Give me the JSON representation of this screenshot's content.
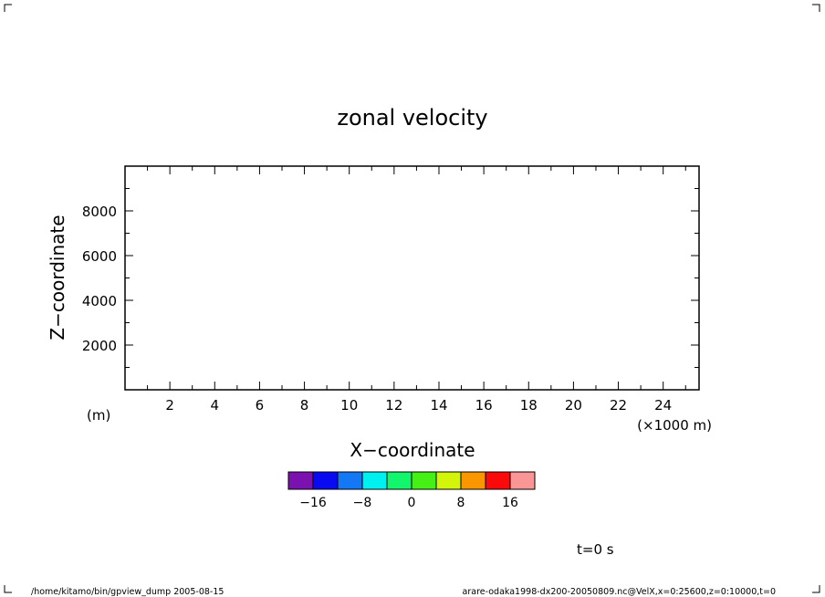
{
  "chart_data": {
    "type": "heatmap",
    "title": "zonal velocity",
    "xlabel": "X−coordinate",
    "ylabel": "Z−coordinate",
    "x_unit": "(×1000 m)",
    "y_unit": "(m)",
    "xlim": [
      0,
      25.6
    ],
    "ylim": [
      0,
      10000
    ],
    "x_ticks": [
      2,
      4,
      6,
      8,
      10,
      12,
      14,
      16,
      18,
      20,
      22,
      24
    ],
    "x_tick_labels": [
      "2",
      "4",
      "6",
      "8",
      "10",
      "12",
      "14",
      "16",
      "18",
      "20",
      "22",
      "24"
    ],
    "x_minor_step": 1,
    "y_ticks": [
      2000,
      4000,
      6000,
      8000
    ],
    "y_tick_labels": [
      "2000",
      "4000",
      "6000",
      "8000"
    ],
    "y_minor_step": 1000,
    "plot_area_empty": true,
    "colorbar": {
      "colors": [
        "#7b12b0",
        "#0a0af0",
        "#1478f5",
        "#00f0f0",
        "#14f56e",
        "#46f014",
        "#d2f50a",
        "#fa9600",
        "#fa0a0a",
        "#fa9696"
      ],
      "tick_values": [
        -16,
        -8,
        0,
        8,
        16
      ],
      "tick_labels": [
        "−16",
        "−8",
        "0",
        "8",
        "16"
      ],
      "range": [
        -20,
        20
      ]
    },
    "annotation": "t=0 s"
  },
  "footer": {
    "left": "/home/kitamo/bin/gpview_dump  2005-08-15",
    "right": "arare-odaka1998-dx200-20050809.nc@VelX,x=0:25600,z=0:10000,t=0"
  }
}
